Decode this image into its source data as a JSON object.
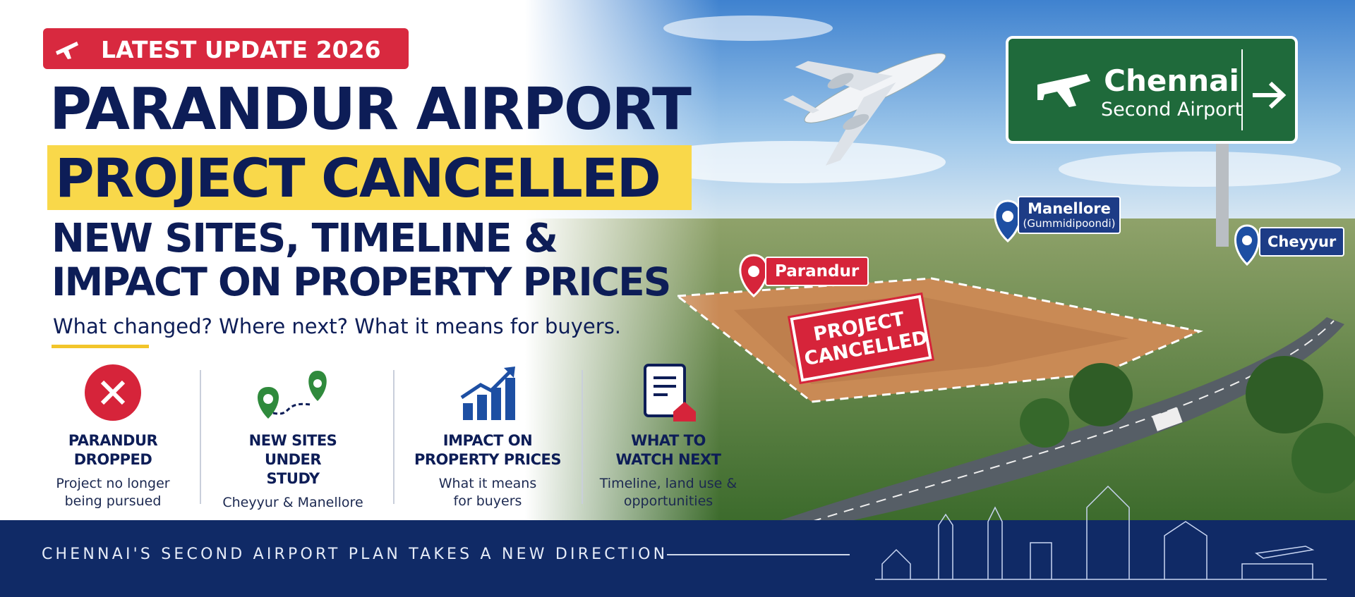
{
  "badge": "LATEST UPDATE 2026",
  "headline": {
    "line1": "PARANDUR AIRPORT",
    "line2": "PROJECT CANCELLED",
    "line3": "NEW SITES, TIMELINE &",
    "line4": "IMPACT ON PROPERTY PRICES"
  },
  "subtitle": "What changed? Where next? What it means for buyers.",
  "features": [
    {
      "title": "PARANDUR DROPPED",
      "description": "Project no longer being pursued"
    },
    {
      "title": "NEW SITES UNDER STUDY",
      "description": "Cheyyur & Manellore"
    },
    {
      "title": "IMPACT ON PROPERTY PRICES",
      "description": "What it means for buyers"
    },
    {
      "title": "WHAT TO WATCH NEXT",
      "description": "Timeline, land use & opportunities"
    }
  ],
  "sign": {
    "line1": "Chennai",
    "line2": "Second Airport"
  },
  "map_labels": {
    "parandur": "Parandur",
    "manellore": "Manellore",
    "manellore_sub": "(Gummidipoondi)",
    "cheyyur": "Cheyyur",
    "stamp": "PROJECT CANCELLED"
  },
  "footer": "CHENNAI'S SECOND AIRPORT PLAN TAKES A NEW DIRECTION"
}
